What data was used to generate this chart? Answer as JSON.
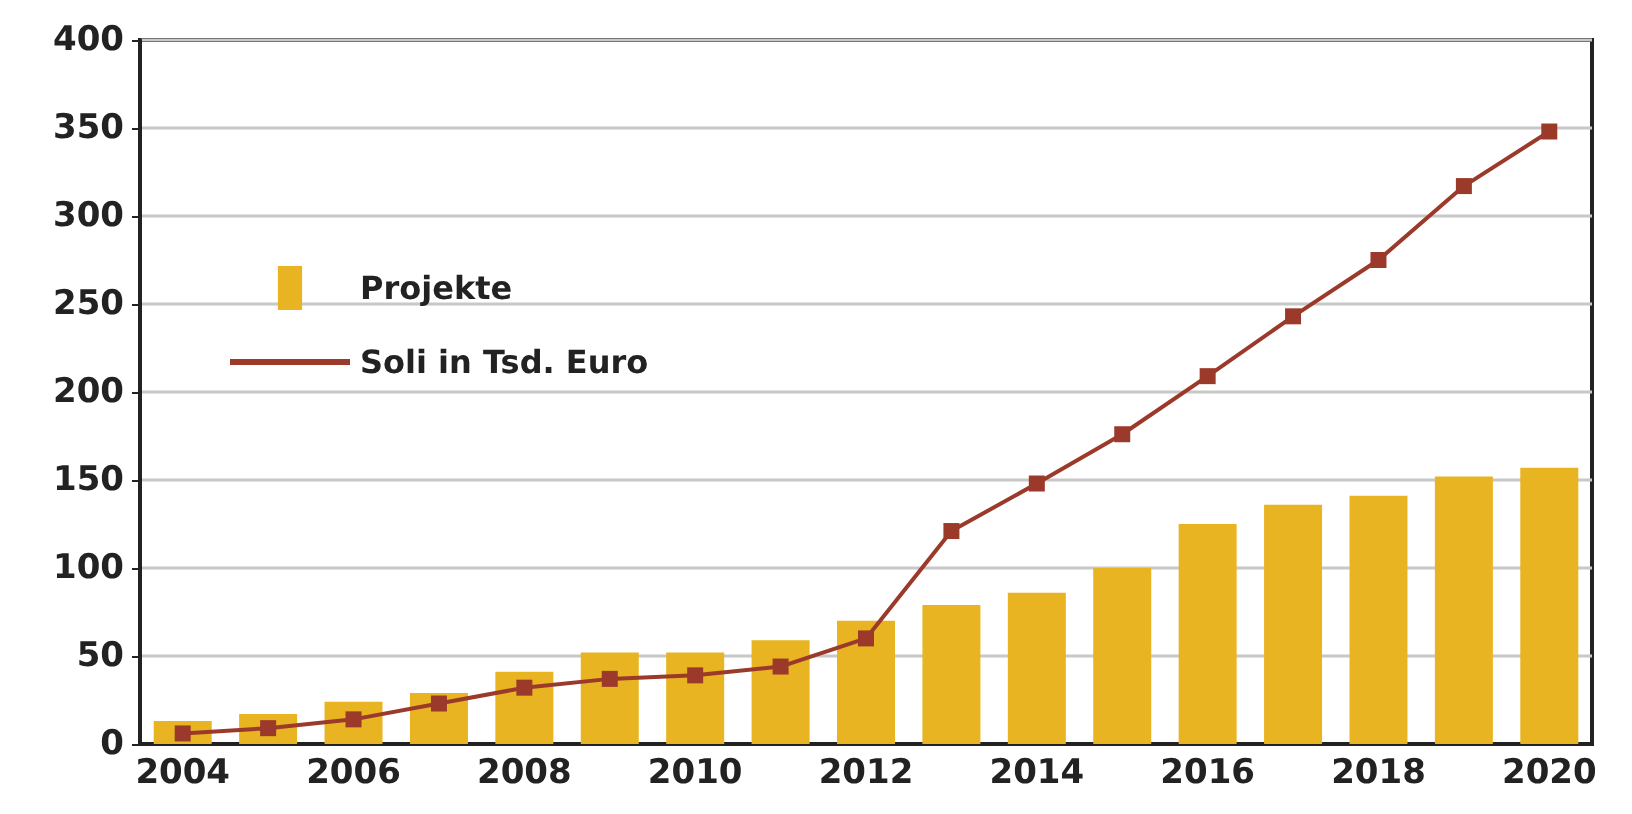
{
  "chart_data": {
    "type": "bar",
    "x": [
      2004,
      2005,
      2006,
      2007,
      2008,
      2009,
      2010,
      2011,
      2012,
      2013,
      2014,
      2015,
      2016,
      2017,
      2018,
      2019,
      2020
    ],
    "series": [
      {
        "name": "Projekte",
        "color": "#e8b422",
        "values": [
          13,
          17,
          24,
          29,
          41,
          52,
          52,
          59,
          70,
          79,
          86,
          100,
          125,
          136,
          141,
          152,
          157
        ]
      },
      {
        "name": "Soli in Tsd. Euro",
        "type": "line",
        "color": "#9b3a2a",
        "marker": "square",
        "values": [
          6,
          9,
          14,
          23,
          32,
          37,
          39,
          44,
          60,
          121,
          148,
          176,
          209,
          243,
          275,
          317,
          348
        ]
      }
    ],
    "xlim": [
      2003.5,
      2020.5
    ],
    "xticks": [
      2004,
      2006,
      2008,
      2010,
      2012,
      2014,
      2016,
      2018,
      2020
    ],
    "ylim": [
      0,
      400
    ],
    "yticks": [
      0,
      50,
      100,
      150,
      200,
      250,
      300,
      350,
      400
    ],
    "grid": "y",
    "legend": "top left"
  }
}
